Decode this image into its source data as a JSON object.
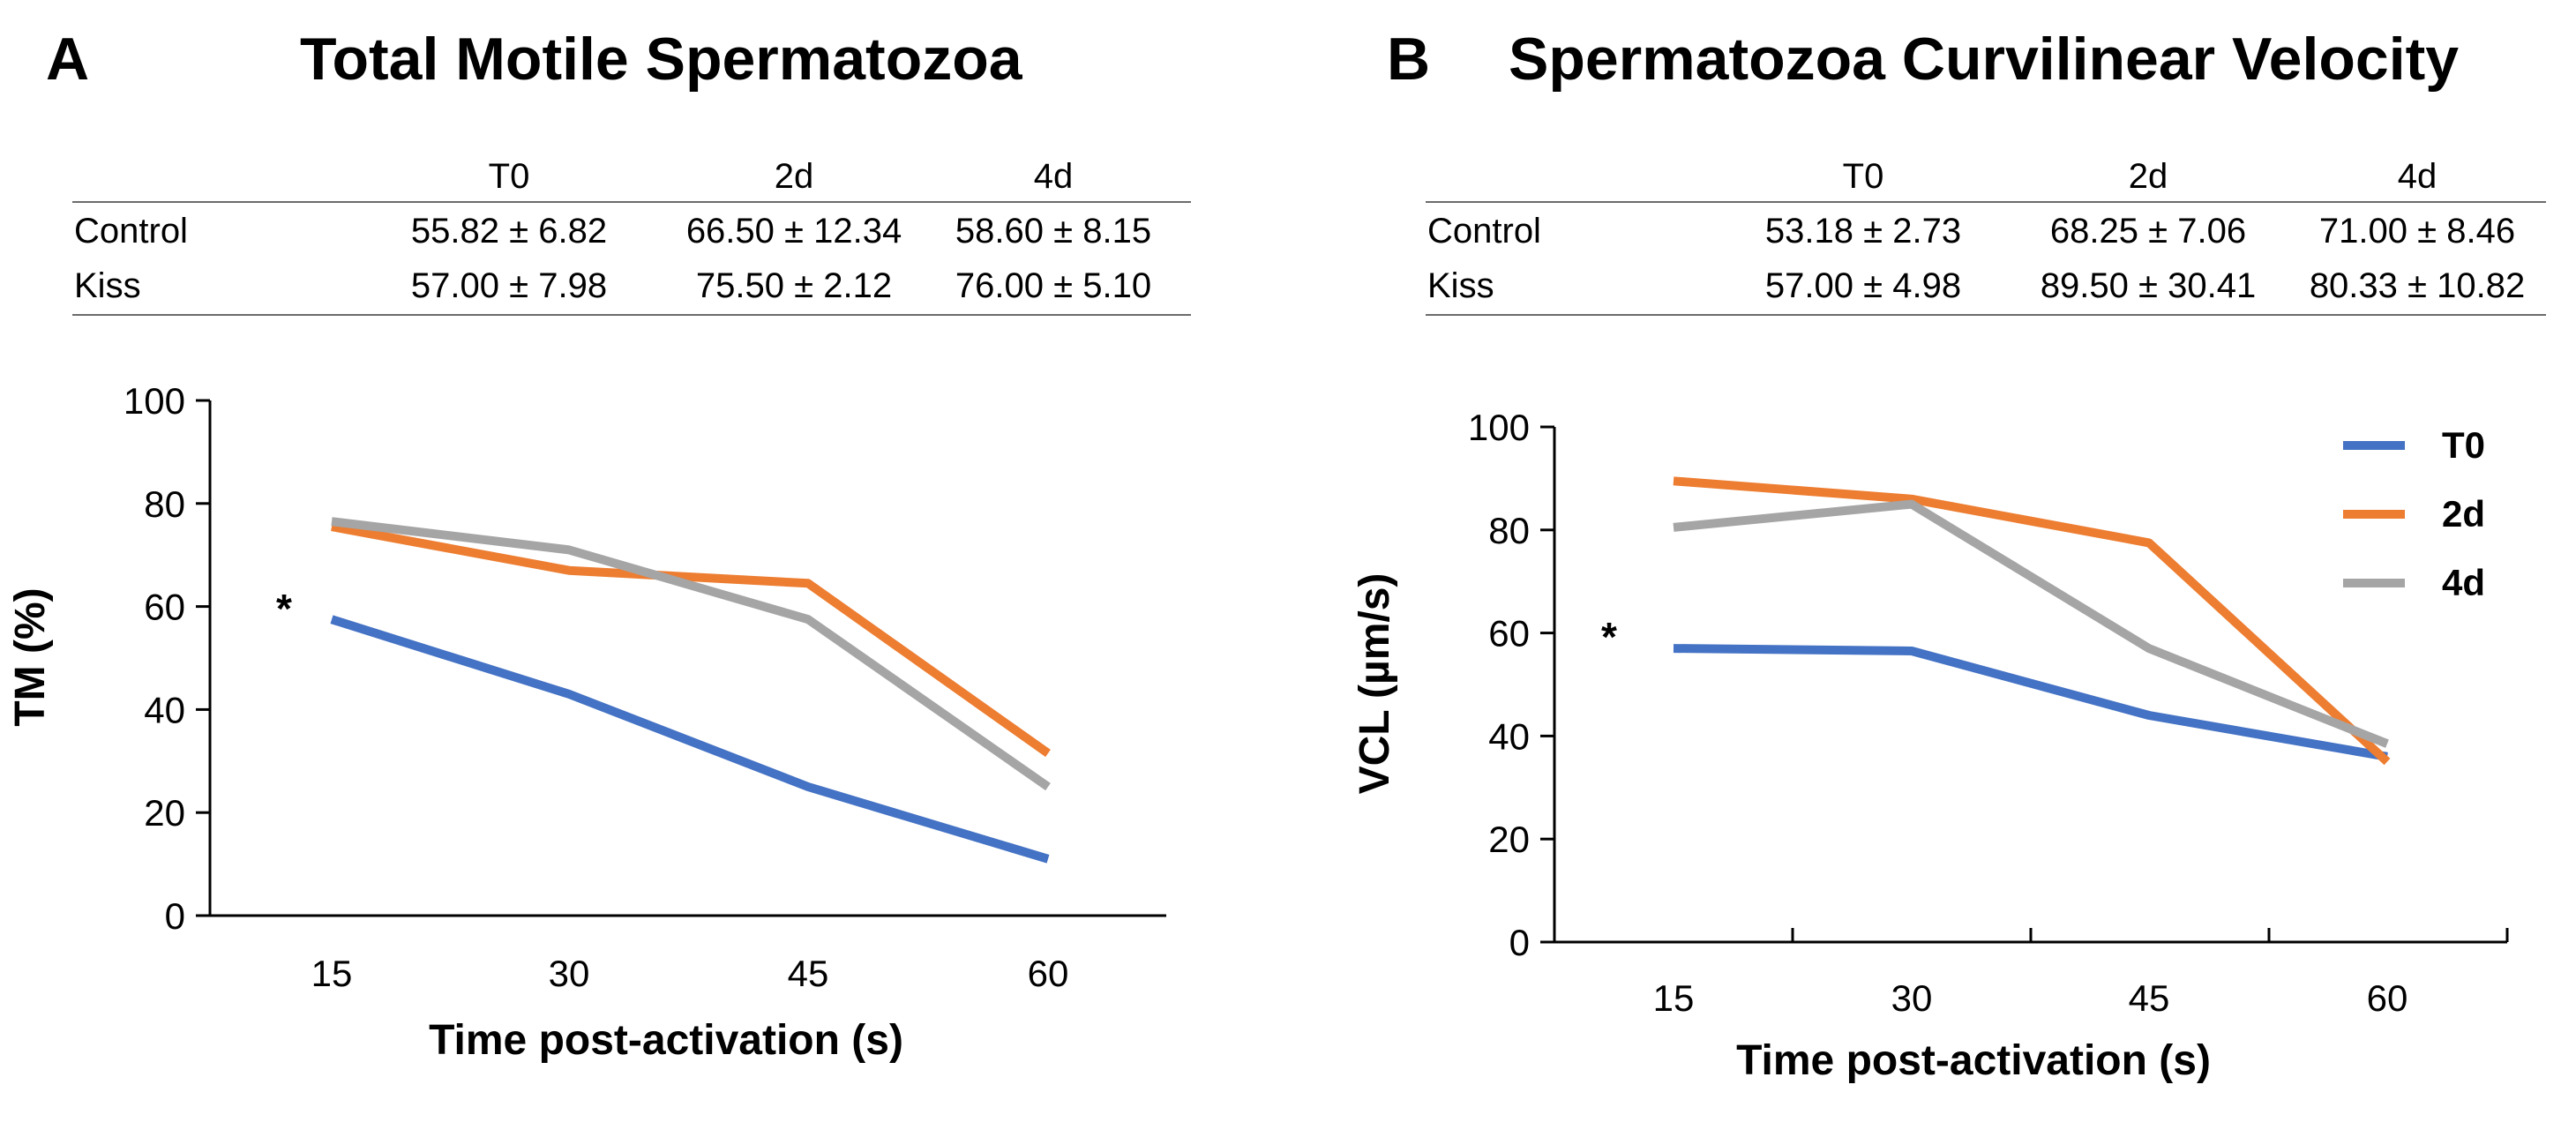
{
  "colors": {
    "T0": "#4472c4",
    "2d": "#ed7d31",
    "4d": "#a5a5a5",
    "axis": "#000000",
    "rule": "#6b6b6b"
  },
  "panels": [
    {
      "letter": "A",
      "title": "Total Motile Spermatozoa",
      "table": {
        "columns": [
          "T0",
          "2d",
          "4d"
        ],
        "rows": [
          {
            "label": "Control",
            "values": [
              "55.82 ± 6.82",
              "66.50 ± 12.34",
              "58.60 ± 8.15"
            ]
          },
          {
            "label": "Kiss",
            "values": [
              "57.00 ± 7.98",
              "75.50 ± 2.12",
              "76.00 ± 5.10"
            ]
          }
        ]
      },
      "chart_data": {
        "type": "line",
        "xlabel": "Time post-activation (s)",
        "ylabel": "TM (%)",
        "categories": [
          "15",
          "30",
          "45",
          "60"
        ],
        "yticks": [
          "0",
          "20",
          "40",
          "60",
          "80",
          "100"
        ],
        "ylim": [
          0,
          100
        ],
        "series": [
          {
            "name": "T0",
            "values": [
              57.5,
              43,
              25,
              11
            ]
          },
          {
            "name": "2d",
            "values": [
              75.5,
              67,
              64.5,
              31.5
            ]
          },
          {
            "name": "4d",
            "values": [
              76.5,
              71,
              57.5,
              25
            ]
          }
        ],
        "annotation": "*",
        "legend": "none"
      }
    },
    {
      "letter": "B",
      "title": "Spermatozoa Curvilinear Velocity",
      "table": {
        "columns": [
          "T0",
          "2d",
          "4d"
        ],
        "rows": [
          {
            "label": "Control",
            "values": [
              "53.18 ± 2.73",
              "68.25 ± 7.06",
              "71.00 ± 8.46"
            ]
          },
          {
            "label": "Kiss",
            "values": [
              "57.00 ± 4.98",
              "89.50 ± 30.41",
              "80.33 ± 10.82"
            ]
          }
        ]
      },
      "chart_data": {
        "type": "line",
        "xlabel": "Time post-activation (s)",
        "ylabel": "VCL (µm/s)",
        "categories": [
          "15",
          "30",
          "45",
          "60"
        ],
        "yticks": [
          "0",
          "20",
          "40",
          "60",
          "80",
          "100"
        ],
        "ylim": [
          0,
          100
        ],
        "series": [
          {
            "name": "T0",
            "values": [
              57,
              56.5,
              44,
              36
            ]
          },
          {
            "name": "2d",
            "values": [
              89.5,
              86,
              77.5,
              35
            ]
          },
          {
            "name": "4d",
            "values": [
              80.5,
              85,
              57,
              38.5
            ]
          }
        ],
        "annotation": "*",
        "legend": "top-right"
      }
    }
  ]
}
